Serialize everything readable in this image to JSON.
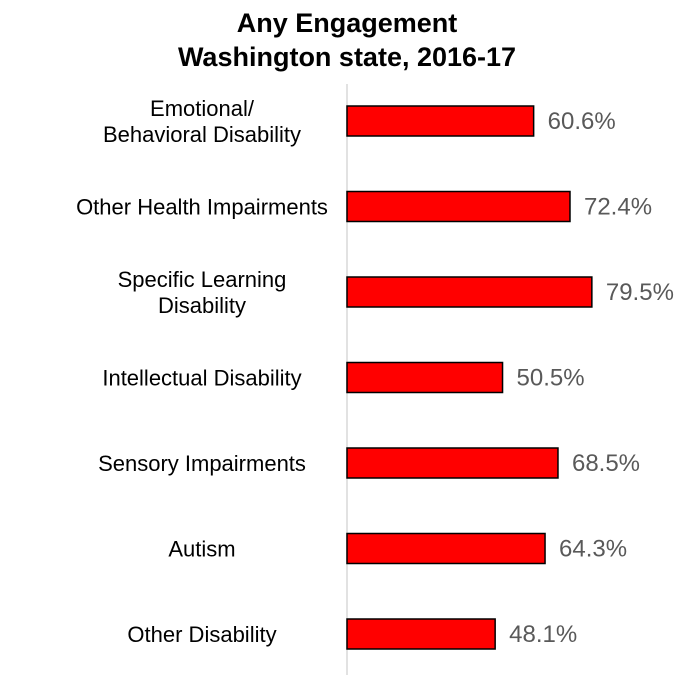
{
  "chart_data": {
    "type": "bar",
    "orientation": "horizontal",
    "title": [
      "Any Engagement",
      "Washington state, 2016-17"
    ],
    "categories": [
      [
        "Emotional/",
        "Behavioral Disability"
      ],
      [
        "Other Health Impairments"
      ],
      [
        "Specific Learning",
        "Disability"
      ],
      [
        "Intellectual Disability"
      ],
      [
        "Sensory Impairments"
      ],
      [
        "Autism"
      ],
      [
        "Other Disability"
      ]
    ],
    "values": [
      60.6,
      72.4,
      79.5,
      50.5,
      68.5,
      64.3,
      48.1
    ],
    "value_labels": [
      "60.6%",
      "72.4%",
      "79.5%",
      "50.5%",
      "68.5%",
      "64.3%",
      "48.1%"
    ],
    "xlim": [
      0,
      100
    ],
    "xlabel": "",
    "ylabel": "",
    "grid": false,
    "legend": "none",
    "colors": {
      "bar_fill": "#ff0000",
      "bar_stroke": "#000000",
      "axis": "#d9d9d9",
      "value_text": "#595959"
    }
  }
}
